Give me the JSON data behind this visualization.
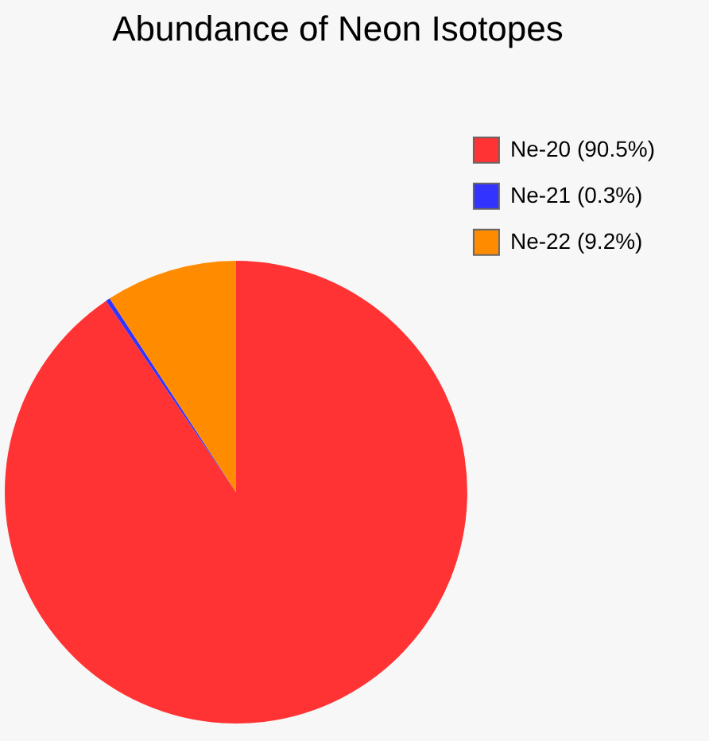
{
  "chart_data": {
    "type": "pie",
    "title": "Abundance of Neon Isotopes",
    "categories": [
      "Ne-20 (90.5%)",
      "Ne-21 (0.3%)",
      "Ne-22 (9.2%)"
    ],
    "values": [
      90.5,
      0.3,
      9.2
    ],
    "colors": [
      "#ff3333",
      "#3333ff",
      "#ff8c00"
    ],
    "legend": "top right"
  }
}
